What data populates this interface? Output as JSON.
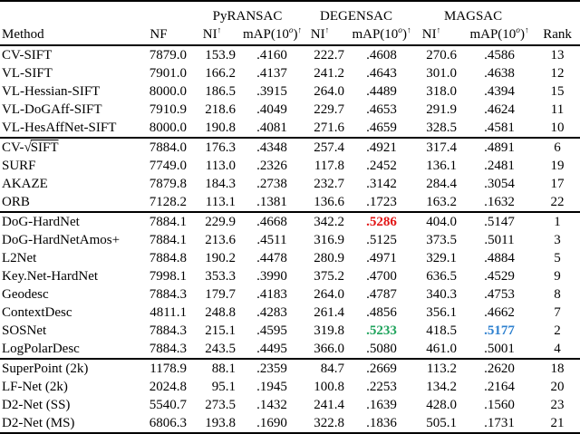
{
  "colors": {
    "best": "#e21414",
    "second": "#1fa35c",
    "third": "#2e80cf"
  },
  "symbols": {
    "sqrt": "√"
  },
  "table": {
    "group_headers": [
      {
        "label": "PyRANSAC"
      },
      {
        "label": "DEGENSAC"
      },
      {
        "label": "MAGSAC"
      }
    ],
    "column_headers": {
      "method": "Method",
      "nf": "NF",
      "ni": "NI",
      "map_prefix": "mAP(10",
      "map_sup": "o",
      "map_close": ")",
      "up_arrow": "↑",
      "rank": "Rank"
    },
    "blocks": [
      {
        "rows": [
          {
            "method": "CV-SIFT",
            "values": [
              "7879.0",
              "153.9",
              ".4160",
              "222.7",
              ".4608",
              "270.6",
              ".4586",
              "13"
            ]
          },
          {
            "method": "VL-SIFT",
            "values": [
              "7901.0",
              "166.2",
              ".4137",
              "241.2",
              ".4643",
              "301.0",
              ".4638",
              "12"
            ]
          },
          {
            "method": "VL-Hessian-SIFT",
            "values": [
              "8000.0",
              "186.5",
              ".3915",
              "264.0",
              ".4489",
              "318.0",
              ".4394",
              "15"
            ]
          },
          {
            "method": "VL-DoGAff-SIFT",
            "values": [
              "7910.9",
              "218.6",
              ".4049",
              "229.7",
              ".4653",
              "291.9",
              ".4624",
              "11"
            ]
          },
          {
            "method": "VL-HesAffNet-SIFT",
            "values": [
              "8000.0",
              "190.8",
              ".4081",
              "271.6",
              ".4659",
              "328.5",
              ".4581",
              "10"
            ]
          }
        ]
      },
      {
        "rows": [
          {
            "method_prefix": "CV-",
            "method_sqrt": "SIFT",
            "values": [
              "7884.0",
              "176.3",
              ".4348",
              "257.4",
              ".4921",
              "317.4",
              ".4891",
              "6"
            ]
          },
          {
            "method": "SURF",
            "values": [
              "7749.0",
              "113.0",
              ".2326",
              "117.8",
              ".2452",
              "136.1",
              ".2481",
              "19"
            ]
          },
          {
            "method": "AKAZE",
            "values": [
              "7879.8",
              "184.3",
              ".2738",
              "232.7",
              ".3142",
              "284.4",
              ".3054",
              "17"
            ]
          },
          {
            "method": "ORB",
            "values": [
              "7128.2",
              "113.1",
              ".1381",
              "136.6",
              ".1723",
              "163.2",
              ".1632",
              "22"
            ]
          }
        ]
      },
      {
        "rows": [
          {
            "method": "DoG-HardNet",
            "values": [
              "7884.1",
              "229.9",
              ".4668",
              "342.2",
              ".5286",
              "404.0",
              ".5147",
              "1"
            ]
          },
          {
            "method": "DoG-HardNetAmos+",
            "values": [
              "7884.1",
              "213.6",
              ".4511",
              "316.9",
              ".5125",
              "373.5",
              ".5011",
              "3"
            ]
          },
          {
            "method": "L2Net",
            "values": [
              "7884.8",
              "190.2",
              ".4478",
              "280.9",
              ".4971",
              "329.1",
              ".4884",
              "5"
            ]
          },
          {
            "method": "Key.Net-HardNet",
            "values": [
              "7998.1",
              "353.3",
              ".3990",
              "375.2",
              ".4700",
              "636.5",
              ".4529",
              "9"
            ]
          },
          {
            "method": "Geodesc",
            "values": [
              "7884.3",
              "179.7",
              ".4183",
              "264.0",
              ".4787",
              "340.3",
              ".4753",
              "8"
            ]
          },
          {
            "method": "ContextDesc",
            "values": [
              "4811.1",
              "248.8",
              ".4283",
              "261.4",
              ".4856",
              "356.1",
              ".4662",
              "7"
            ]
          },
          {
            "method": "SOSNet",
            "values": [
              "7884.3",
              "215.1",
              ".4595",
              "319.8",
              ".5233",
              "418.5",
              ".5177",
              "2"
            ]
          },
          {
            "method": "LogPolarDesc",
            "values": [
              "7884.3",
              "243.5",
              ".4495",
              "366.0",
              ".5080",
              "461.0",
              ".5001",
              "4"
            ]
          }
        ]
      },
      {
        "rows": [
          {
            "method": "SuperPoint (2k)",
            "values": [
              "1178.9",
              "88.1",
              ".2359",
              "84.7",
              ".2669",
              "113.2",
              ".2620",
              "18"
            ]
          },
          {
            "method": "LF-Net (2k)",
            "values": [
              "2024.8",
              "95.1",
              ".1945",
              "100.8",
              ".2253",
              "134.2",
              ".2164",
              "20"
            ]
          },
          {
            "method": "D2-Net (SS)",
            "values": [
              "5540.7",
              "273.5",
              ".1432",
              "241.4",
              ".1639",
              "428.0",
              ".1560",
              "23"
            ]
          },
          {
            "method": "D2-Net (MS)",
            "values": [
              "6806.3",
              "193.8",
              ".1690",
              "322.8",
              ".1836",
              "505.1",
              ".1731",
              "21"
            ]
          }
        ]
      }
    ],
    "highlights": [
      {
        "block": 2,
        "row": 0,
        "col": 4,
        "color_key": "best"
      },
      {
        "block": 2,
        "row": 6,
        "col": 4,
        "color_key": "second"
      },
      {
        "block": 2,
        "row": 6,
        "col": 6,
        "color_key": "third"
      }
    ]
  }
}
